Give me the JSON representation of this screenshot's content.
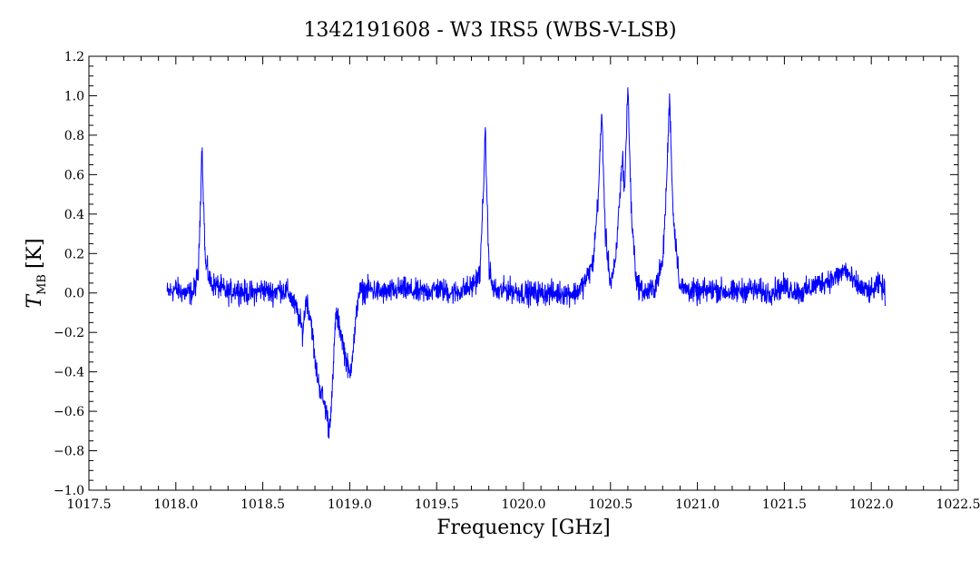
{
  "chart_data": {
    "type": "line",
    "title": "1342191608 - W3 IRS5 (WBS-V-LSB)",
    "xlabel": "Frequency [GHz]",
    "ylabel_main": "T",
    "ylabel_sub": "MB",
    "ylabel_unit": "[K]",
    "xlim": [
      1017.5,
      1022.5
    ],
    "ylim": [
      -1.0,
      1.2
    ],
    "x_ticks": [
      1017.5,
      1018.0,
      1018.5,
      1019.0,
      1019.5,
      1020.0,
      1020.5,
      1021.0,
      1021.5,
      1022.0,
      1022.5
    ],
    "x_tick_labels": [
      "1017.5",
      "1018.0",
      "1018.5",
      "1019.0",
      "1019.5",
      "1020.0",
      "1020.5",
      "1021.0",
      "1021.5",
      "1022.0",
      "1022.5"
    ],
    "y_ticks": [
      -1.0,
      -0.8,
      -0.6,
      -0.4,
      -0.2,
      0.0,
      0.2,
      0.4,
      0.6,
      0.8,
      1.0,
      1.2
    ],
    "y_tick_labels": [
      "−1.0",
      "−0.8",
      "−0.6",
      "−0.4",
      "−0.2",
      "0.0",
      "0.2",
      "0.4",
      "0.6",
      "0.8",
      "1.0",
      "1.2"
    ],
    "grid": false,
    "series": [
      {
        "color": "#0000ff",
        "x": [
          1017.95,
          1018.0,
          1018.05,
          1018.1,
          1018.13,
          1018.15,
          1018.17,
          1018.2,
          1018.25,
          1018.3,
          1018.35,
          1018.4,
          1018.45,
          1018.5,
          1018.55,
          1018.6,
          1018.65,
          1018.7,
          1018.73,
          1018.75,
          1018.78,
          1018.8,
          1018.82,
          1018.85,
          1018.87,
          1018.88,
          1018.9,
          1018.92,
          1018.95,
          1018.97,
          1019.0,
          1019.03,
          1019.05,
          1019.1,
          1019.2,
          1019.3,
          1019.4,
          1019.5,
          1019.6,
          1019.7,
          1019.75,
          1019.78,
          1019.8,
          1019.82,
          1019.85,
          1019.9,
          1020.0,
          1020.1,
          1020.2,
          1020.3,
          1020.35,
          1020.4,
          1020.43,
          1020.45,
          1020.47,
          1020.5,
          1020.53,
          1020.55,
          1020.57,
          1020.58,
          1020.6,
          1020.62,
          1020.65,
          1020.7,
          1020.75,
          1020.8,
          1020.82,
          1020.84,
          1020.86,
          1020.9,
          1021.0,
          1021.1,
          1021.2,
          1021.3,
          1021.4,
          1021.5,
          1021.6,
          1021.7,
          1021.8,
          1021.85,
          1021.9,
          1021.95,
          1022.0,
          1022.05,
          1022.08
        ],
        "y": [
          0.0,
          0.02,
          0.0,
          0.0,
          0.1,
          0.75,
          0.15,
          0.05,
          0.03,
          0.0,
          0.02,
          0.0,
          0.0,
          0.02,
          0.0,
          0.02,
          0.0,
          -0.1,
          -0.2,
          -0.02,
          -0.15,
          -0.35,
          -0.45,
          -0.55,
          -0.62,
          -0.7,
          -0.5,
          -0.1,
          -0.2,
          -0.3,
          -0.42,
          -0.2,
          0.0,
          0.02,
          0.0,
          0.02,
          0.0,
          0.02,
          0.0,
          0.03,
          0.1,
          0.8,
          0.15,
          0.03,
          0.0,
          0.02,
          0.0,
          0.0,
          0.0,
          0.0,
          0.05,
          0.15,
          0.5,
          0.92,
          0.3,
          0.05,
          0.15,
          0.45,
          0.7,
          0.5,
          1.05,
          0.4,
          0.05,
          0.0,
          0.02,
          0.15,
          0.5,
          1.0,
          0.4,
          0.03,
          0.0,
          0.02,
          0.0,
          0.02,
          0.0,
          0.03,
          0.0,
          0.05,
          0.08,
          0.12,
          0.05,
          0.02,
          0.0,
          0.05,
          0.0
        ]
      }
    ]
  }
}
